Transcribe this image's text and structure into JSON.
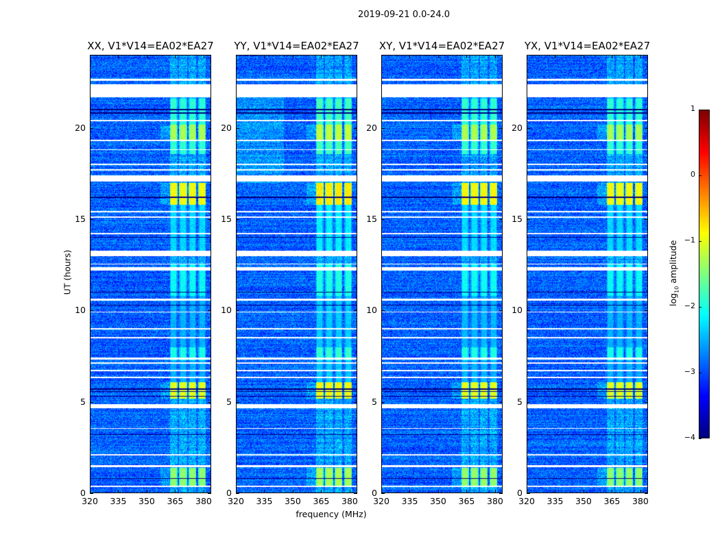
{
  "chart_data": {
    "type": "heatmap",
    "suptitle": "2019-09-21 0.0-24.0",
    "xlabel": "frequency (MHz)",
    "ylabel": "UT (hours)",
    "xlim": [
      320,
      384
    ],
    "ylim": [
      0,
      24
    ],
    "xticks": [
      "320",
      "335",
      "350",
      "365",
      "380"
    ],
    "xtick_values": [
      320,
      335,
      350,
      365,
      380
    ],
    "yticks": [
      "0",
      "5",
      "10",
      "15",
      "20"
    ],
    "ytick_values": [
      0,
      5,
      10,
      15,
      20
    ],
    "panels": [
      {
        "title": "XX, V1*V14=EA02*EA27",
        "gain": 0.0
      },
      {
        "title": "YY, V1*V14=EA02*EA27",
        "gain": 0.25
      },
      {
        "title": "XY, V1*V14=EA02*EA27",
        "gain": 0.05
      },
      {
        "title": "YX, V1*V14=EA02*EA27",
        "gain": 0.0
      }
    ],
    "colorbar": {
      "label_prefix": "log",
      "label_sub": "10",
      "label_suffix": " amplitude",
      "range": [
        -4,
        1
      ],
      "ticks": [
        "1",
        "0",
        "−1",
        "−2",
        "−3",
        "−4"
      ],
      "tick_values": [
        1,
        0,
        -1,
        -2,
        -3,
        -4
      ],
      "colormap": "jet"
    },
    "background_level": -2.9,
    "subbands_mhz": [
      [
        362,
        366
      ],
      [
        367,
        371
      ],
      [
        372,
        376
      ],
      [
        377,
        381
      ]
    ],
    "flagged_hours": [
      [
        21.7,
        22.4
      ],
      [
        22.6,
        22.7
      ],
      [
        17.1,
        17.4
      ],
      [
        13.0,
        13.3
      ],
      [
        4.65,
        4.9
      ],
      [
        12.2,
        12.4
      ],
      [
        12.55,
        12.6
      ],
      [
        10.55,
        10.65
      ],
      [
        7.1,
        7.2
      ],
      [
        7.35,
        7.45
      ],
      [
        6.3,
        6.4
      ],
      [
        3.55,
        3.6
      ],
      [
        1.45,
        1.55
      ],
      [
        0.35,
        0.42
      ],
      [
        20.4,
        20.45
      ],
      [
        18.8,
        18.85
      ],
      [
        19.3,
        19.35
      ],
      [
        18.0,
        18.05
      ],
      [
        17.7,
        17.75
      ],
      [
        15.4,
        15.45
      ],
      [
        15.1,
        15.15
      ],
      [
        14.2,
        14.25
      ],
      [
        9.9,
        9.95
      ],
      [
        9.0,
        9.05
      ],
      [
        8.5,
        8.55
      ],
      [
        6.7,
        6.75
      ],
      [
        2.1,
        2.15
      ]
    ],
    "dark_hours": [
      [
        5.3,
        5.35
      ],
      [
        5.55,
        5.6
      ],
      [
        5.7,
        5.75
      ],
      [
        20.8,
        20.85
      ],
      [
        21.0,
        21.05
      ],
      [
        16.2,
        16.25
      ],
      [
        14.0,
        14.05
      ],
      [
        11.0,
        11.05
      ],
      [
        10.3,
        10.35
      ],
      [
        3.2,
        3.25
      ],
      [
        0.8,
        0.85
      ]
    ],
    "bright_episodes": [
      {
        "t": [
          21.5,
          22.4
        ],
        "level": -2.4
      },
      {
        "t": [
          18.6,
          21.6
        ],
        "level": -1.9
      },
      {
        "t": [
          19.3,
          20.2
        ],
        "level": -1.3
      },
      {
        "t": [
          15.8,
          17.0
        ],
        "level": -0.9
      },
      {
        "t": [
          13.3,
          15.8
        ],
        "level": -2.3
      },
      {
        "t": [
          10.8,
          12.6
        ],
        "level": -2.1
      },
      {
        "t": [
          7.3,
          8.0
        ],
        "level": -2.0
      },
      {
        "t": [
          5.2,
          6.1
        ],
        "level": -1.0
      },
      {
        "t": [
          0.4,
          1.4
        ],
        "level": -1.4
      },
      {
        "t": [
          6.1,
          10.8
        ],
        "level": -2.5
      }
    ]
  }
}
